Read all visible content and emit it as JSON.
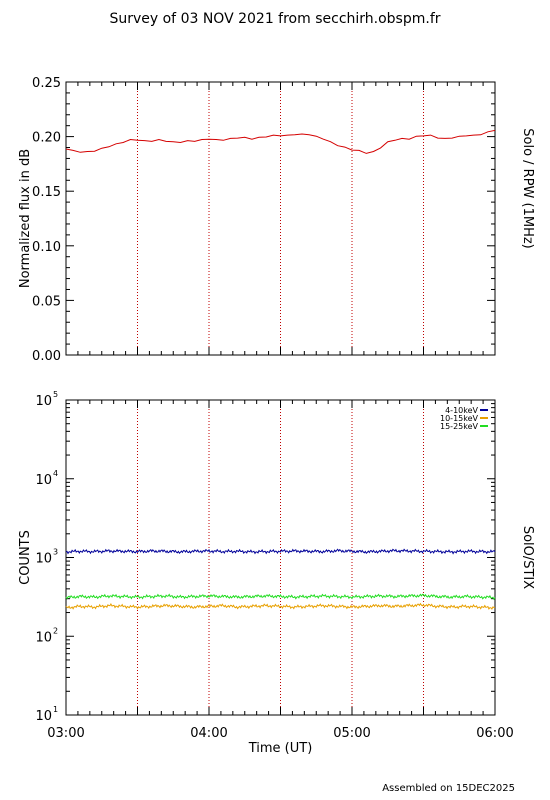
{
  "title": "Survey of 03 NOV 2021 from secchirh.obspm.fr",
  "footer": "Assembled on 15DEC2025",
  "chart_data": [
    {
      "type": "line",
      "ylabel": "Normalized flux in dB",
      "right_label": "Solo / RPW (1MHz)",
      "xlim_hours": [
        3.0,
        6.0
      ],
      "ylim": [
        0.0,
        0.25
      ],
      "yticks": [
        {
          "value": 0.0,
          "label": "0.00"
        },
        {
          "value": 0.05,
          "label": "0.05"
        },
        {
          "value": 0.1,
          "label": "0.10"
        },
        {
          "value": 0.15,
          "label": "0.15"
        },
        {
          "value": 0.2,
          "label": "0.20"
        },
        {
          "value": 0.25,
          "label": "0.25"
        }
      ],
      "vertical_markers_hours": [
        3.5,
        4.0,
        4.5,
        5.0,
        5.5
      ],
      "grid": false,
      "series": [
        {
          "color": "#d40000",
          "x_hours": [
            3.0,
            3.05,
            3.1,
            3.15,
            3.2,
            3.25,
            3.3,
            3.35,
            3.4,
            3.45,
            3.5,
            3.55,
            3.6,
            3.65,
            3.7,
            3.75,
            3.8,
            3.85,
            3.9,
            3.95,
            4.0,
            4.05,
            4.1,
            4.15,
            4.2,
            4.25,
            4.3,
            4.35,
            4.4,
            4.45,
            4.5,
            4.55,
            4.6,
            4.65,
            4.7,
            4.75,
            4.8,
            4.85,
            4.9,
            4.95,
            5.0,
            5.05,
            5.1,
            5.15,
            5.2,
            5.25,
            5.3,
            5.35,
            5.4,
            5.45,
            5.5,
            5.55,
            5.6,
            5.65,
            5.7,
            5.75,
            5.8,
            5.85,
            5.9,
            5.95,
            6.0
          ],
          "values": [
            0.189,
            0.187,
            0.186,
            0.186,
            0.187,
            0.189,
            0.191,
            0.193,
            0.195,
            0.197,
            0.197,
            0.196,
            0.196,
            0.197,
            0.196,
            0.195,
            0.195,
            0.196,
            0.196,
            0.197,
            0.198,
            0.197,
            0.197,
            0.198,
            0.199,
            0.199,
            0.198,
            0.199,
            0.2,
            0.201,
            0.201,
            0.201,
            0.202,
            0.202,
            0.202,
            0.2,
            0.198,
            0.195,
            0.192,
            0.19,
            0.188,
            0.187,
            0.185,
            0.186,
            0.19,
            0.195,
            0.197,
            0.198,
            0.198,
            0.2,
            0.201,
            0.201,
            0.199,
            0.198,
            0.199,
            0.2,
            0.201,
            0.201,
            0.202,
            0.204,
            0.206
          ]
        }
      ]
    },
    {
      "type": "line",
      "ylabel": "COUNTS",
      "right_label": "SolO/STIX",
      "xlabel": "Time (UT)",
      "xlim_hours": [
        3.0,
        6.0
      ],
      "xticks": [
        {
          "value": 3.0,
          "label": "03:00"
        },
        {
          "value": 4.0,
          "label": "04:00"
        },
        {
          "value": 5.0,
          "label": "05:00"
        },
        {
          "value": 6.0,
          "label": "06:00"
        }
      ],
      "ylim": [
        10,
        100000
      ],
      "yscale": "log",
      "yticks": [
        {
          "value": 10,
          "base": "10",
          "exp": "1"
        },
        {
          "value": 100,
          "base": "10",
          "exp": "2"
        },
        {
          "value": 1000,
          "base": "10",
          "exp": "3"
        },
        {
          "value": 10000,
          "base": "10",
          "exp": "4"
        },
        {
          "value": 100000,
          "base": "10",
          "exp": "5"
        }
      ],
      "vertical_markers_hours": [
        3.5,
        4.0,
        4.5,
        5.0,
        5.5
      ],
      "legend_position": "top-right",
      "grid": false,
      "series": [
        {
          "name": "4-10keV",
          "color": "#000099",
          "x_hours": [
            3.0,
            3.1,
            3.2,
            3.3,
            3.4,
            3.5,
            3.6,
            3.7,
            3.8,
            3.9,
            4.0,
            4.1,
            4.2,
            4.3,
            4.4,
            4.5,
            4.6,
            4.7,
            4.8,
            4.9,
            5.0,
            5.1,
            5.2,
            5.3,
            5.4,
            5.5,
            5.6,
            5.7,
            5.8,
            5.9,
            6.0
          ],
          "values": [
            1180,
            1200,
            1190,
            1210,
            1200,
            1190,
            1210,
            1200,
            1180,
            1200,
            1210,
            1190,
            1200,
            1180,
            1190,
            1200,
            1210,
            1200,
            1190,
            1220,
            1200,
            1180,
            1200,
            1220,
            1210,
            1200,
            1190,
            1180,
            1200,
            1190,
            1180
          ]
        },
        {
          "name": "10-15keV",
          "color": "#e8a000",
          "x_hours": [
            3.0,
            3.1,
            3.2,
            3.3,
            3.4,
            3.5,
            3.6,
            3.7,
            3.8,
            3.9,
            4.0,
            4.1,
            4.2,
            4.3,
            4.4,
            4.5,
            4.6,
            4.7,
            4.8,
            4.9,
            5.0,
            5.1,
            5.2,
            5.3,
            5.4,
            5.5,
            5.6,
            5.7,
            5.8,
            5.9,
            6.0
          ],
          "values": [
            230,
            240,
            235,
            245,
            240,
            235,
            240,
            245,
            240,
            235,
            240,
            245,
            235,
            240,
            245,
            240,
            235,
            240,
            245,
            240,
            235,
            240,
            245,
            240,
            245,
            250,
            240,
            235,
            240,
            235,
            230
          ]
        },
        {
          "name": "15-25keV",
          "color": "#22dd22",
          "x_hours": [
            3.0,
            3.1,
            3.2,
            3.3,
            3.4,
            3.5,
            3.6,
            3.7,
            3.8,
            3.9,
            4.0,
            4.1,
            4.2,
            4.3,
            4.4,
            4.5,
            4.6,
            4.7,
            4.8,
            4.9,
            5.0,
            5.1,
            5.2,
            5.3,
            5.4,
            5.5,
            5.6,
            5.7,
            5.8,
            5.9,
            6.0
          ],
          "values": [
            310,
            320,
            315,
            325,
            320,
            315,
            320,
            325,
            315,
            320,
            325,
            320,
            315,
            320,
            325,
            320,
            315,
            320,
            325,
            320,
            315,
            320,
            325,
            320,
            325,
            330,
            320,
            315,
            320,
            315,
            310
          ]
        }
      ]
    }
  ]
}
